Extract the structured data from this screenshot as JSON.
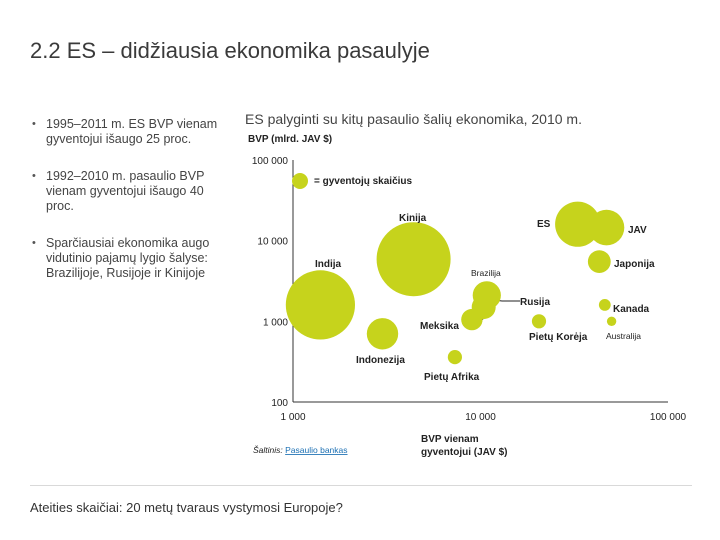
{
  "slide": {
    "title": "2.2 ES – didžiausia ekonomika pasaulyje",
    "bullets": [
      "1995–2011 m. ES BVP vienam gyventojui išaugo 25 proc.",
      "1992–2010 m. pasaulio BVP vienam gyventojui išaugo 40 proc.",
      "Sparčiausiai ekonomika augo vidutinio pajamų lygio šalyse: Brazilijoje, Rusijoje ir Kinijoje"
    ],
    "footer": "Ateities skaičiai: 20 metų tvaraus vystymosi Europoje?"
  },
  "chart_data": {
    "type": "scatter",
    "title": "ES palyginti su kitų pasaulio šalių ekonomika, 2010 m.",
    "ylabel": "BVP (mlrd. JAV $)",
    "xlabel": "BVP vienam gyventojui (JAV $)",
    "x_scale": "log",
    "y_scale": "log",
    "xlim": [
      1000,
      100000
    ],
    "ylim": [
      100,
      100000
    ],
    "x_ticks": [
      {
        "value": 1000,
        "label": "1 000"
      },
      {
        "value": 10000,
        "label": "10 000"
      },
      {
        "value": 100000,
        "label": "100 000"
      }
    ],
    "y_ticks": [
      {
        "value": 100,
        "label": "100"
      },
      {
        "value": 1000,
        "label": "1 000"
      },
      {
        "value": 10000,
        "label": "10 000"
      },
      {
        "value": 100000,
        "label": "100 000"
      }
    ],
    "bubble_legend": "= gyventojų skaičius",
    "source_prefix": "Šaltinis:",
    "source_link": "Pasaulio bankas",
    "bubble_color": "#c6d31c",
    "points": [
      {
        "name": "Kinija",
        "x": 4400,
        "y": 5900,
        "population": 1340
      },
      {
        "name": "Indija",
        "x": 1400,
        "y": 1600,
        "population": 1170
      },
      {
        "name": "ES",
        "x": 33000,
        "y": 16000,
        "population": 500
      },
      {
        "name": "JAV",
        "x": 47000,
        "y": 14500,
        "population": 310
      },
      {
        "name": "Japonija",
        "x": 43000,
        "y": 5500,
        "population": 127
      },
      {
        "name": "Brazilija",
        "x": 10800,
        "y": 2100,
        "population": 195
      },
      {
        "name": "Rusija",
        "x": 10400,
        "y": 1500,
        "population": 142
      },
      {
        "name": "Meksika",
        "x": 9000,
        "y": 1050,
        "population": 113
      },
      {
        "name": "Indonezija",
        "x": 3000,
        "y": 700,
        "population": 240
      },
      {
        "name": "Pietų Korėja",
        "x": 20500,
        "y": 1000,
        "population": 49
      },
      {
        "name": "Kanada",
        "x": 46000,
        "y": 1600,
        "population": 34
      },
      {
        "name": "Australija",
        "x": 50000,
        "y": 1000,
        "population": 22
      },
      {
        "name": "Pietų Afrika",
        "x": 7300,
        "y": 360,
        "population": 50
      }
    ]
  }
}
